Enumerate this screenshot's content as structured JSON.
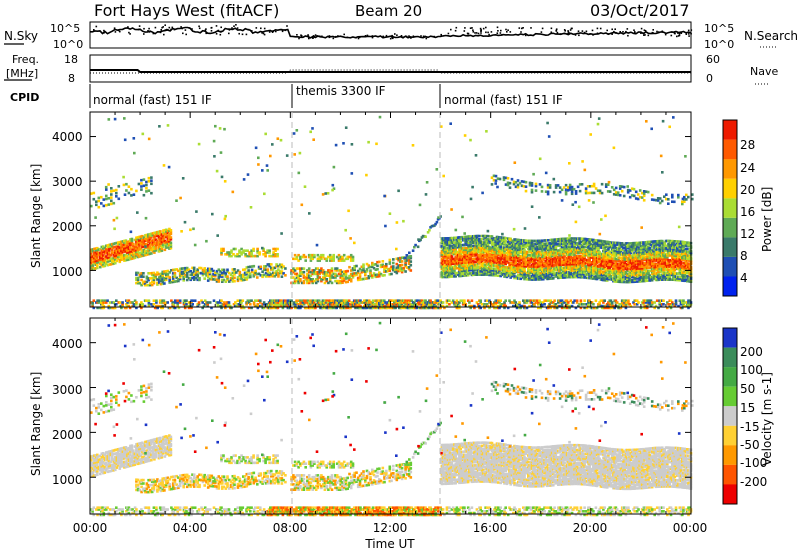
{
  "header": {
    "station": "Fort Hays West (fitACF)",
    "beam": "Beam 20",
    "date": "03/Oct/2017"
  },
  "noise_panel": {
    "left_label": "N.Sky",
    "right_label": "N.Search",
    "ticks_left": [
      "10^5",
      "10^0"
    ],
    "ticks_right": [
      "10^5",
      "10^0"
    ]
  },
  "freq_panel": {
    "left_label_1": "Freq.",
    "left_label_2": "[MHz]",
    "right_label": "Nave",
    "ticks_left": [
      "18",
      "8"
    ],
    "ticks_right": [
      "60",
      "0"
    ]
  },
  "cpid_panel": {
    "label": "CPID",
    "segments": [
      {
        "label": "normal (fast) 151 IF",
        "start": 0,
        "end": 8
      },
      {
        "label": "themis 3300 IF",
        "start": 8,
        "end": 14
      },
      {
        "label": "normal (fast) 151 IF",
        "start": 14,
        "end": 24
      }
    ]
  },
  "x_axis": {
    "label": "Time UT",
    "ticks": [
      "00:00",
      "04:00",
      "08:00",
      "12:00",
      "16:00",
      "20:00",
      "00:00"
    ]
  },
  "power_panel": {
    "ylabel": "Slant Range [km]",
    "yticks": [
      "1000",
      "2000",
      "3000",
      "4000"
    ],
    "colorbar_label": "Power [dB]",
    "colorbar_ticks": [
      "28",
      "24",
      "20",
      "16",
      "12",
      "8",
      "4"
    ],
    "colors": [
      "#0022ee",
      "#1f4fb4",
      "#3a7a6a",
      "#5faa55",
      "#aadd33",
      "#ffd000",
      "#ff9800",
      "#ff5a00",
      "#ee1a00"
    ]
  },
  "velocity_panel": {
    "ylabel": "Slant Range [km]",
    "yticks": [
      "1000",
      "2000",
      "3000",
      "4000"
    ],
    "colorbar_label": "Velocity [m s-1]",
    "colorbar_ticks": [
      "200",
      "100",
      "50",
      "15",
      "-15",
      "-50",
      "-100",
      "-200"
    ],
    "colors": [
      "#1a35c8",
      "#3b8c5a",
      "#44aa44",
      "#66cc33",
      "#cccccc",
      "#ffd033",
      "#ff9900",
      "#ff5500",
      "#ee0000"
    ]
  },
  "chart_data": {
    "type": "heatmap",
    "x_range_hours": [
      0,
      24
    ],
    "y_range_km": [
      180,
      4550
    ],
    "echo_regions": [
      {
        "name": "early ionospheric band",
        "t0": 0,
        "t1": 3.2,
        "r0": 1150,
        "r1": 1700,
        "power": "high"
      },
      {
        "name": "morning band",
        "t0": 2,
        "t1": 7.8,
        "r0": 700,
        "r1": 1100,
        "power": "moderate"
      },
      {
        "name": "themis band",
        "t0": 8,
        "t1": 12.8,
        "r0": 800,
        "r1": 1350,
        "power": "moderate"
      },
      {
        "name": "afternoon main band",
        "t0": 14,
        "t1": 24,
        "r0": 1000,
        "r1": 1800,
        "power": "high"
      },
      {
        "name": "upper weak band",
        "t0": 16,
        "t1": 24,
        "r0": 2500,
        "r1": 3300,
        "power": "low"
      },
      {
        "name": "ground scatter near range",
        "t0": 0,
        "t1": 24,
        "r0": 180,
        "r1": 350,
        "power": "mixed"
      }
    ]
  }
}
